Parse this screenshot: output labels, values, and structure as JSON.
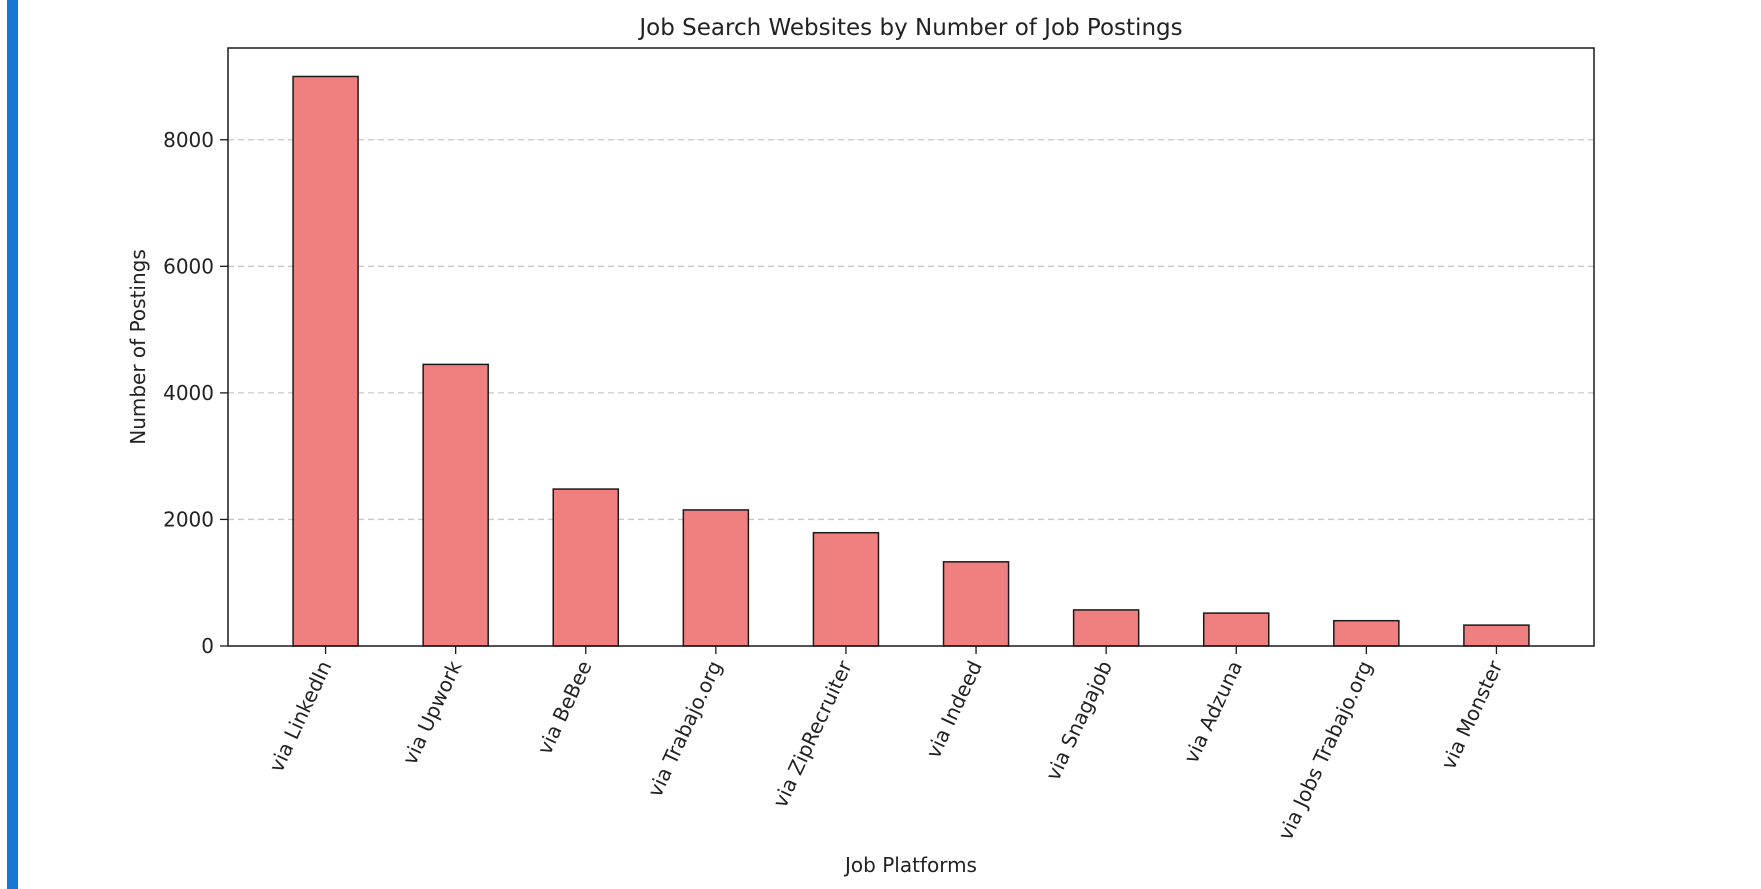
{
  "colors": {
    "accent": "#1976d2",
    "bar_fill": "#f08080",
    "bar_stroke": "#1a1a1a",
    "grid": "#c8c8c8"
  },
  "chart_data": {
    "type": "bar",
    "title": "Job Search Websites by Number of Job Postings",
    "xlabel": "Job Platforms",
    "ylabel": "Number of Postings",
    "categories": [
      "via LinkedIn",
      "via Upwork",
      "via BeBee",
      "via Trabajo.org",
      "via ZipRecruiter",
      "via Indeed",
      "via Snagajob",
      "via Adzuna",
      "via Jobs Trabajo.org",
      "via Monster"
    ],
    "values": [
      9000,
      4450,
      2480,
      2150,
      1790,
      1330,
      570,
      520,
      400,
      330
    ],
    "ylim": [
      0,
      9450
    ],
    "yticks": [
      0,
      2000,
      4000,
      6000,
      8000
    ],
    "ytick_labels": [
      "0",
      "2000",
      "4000",
      "6000",
      "8000"
    ],
    "grid": "y-dashed",
    "legend": "none"
  }
}
